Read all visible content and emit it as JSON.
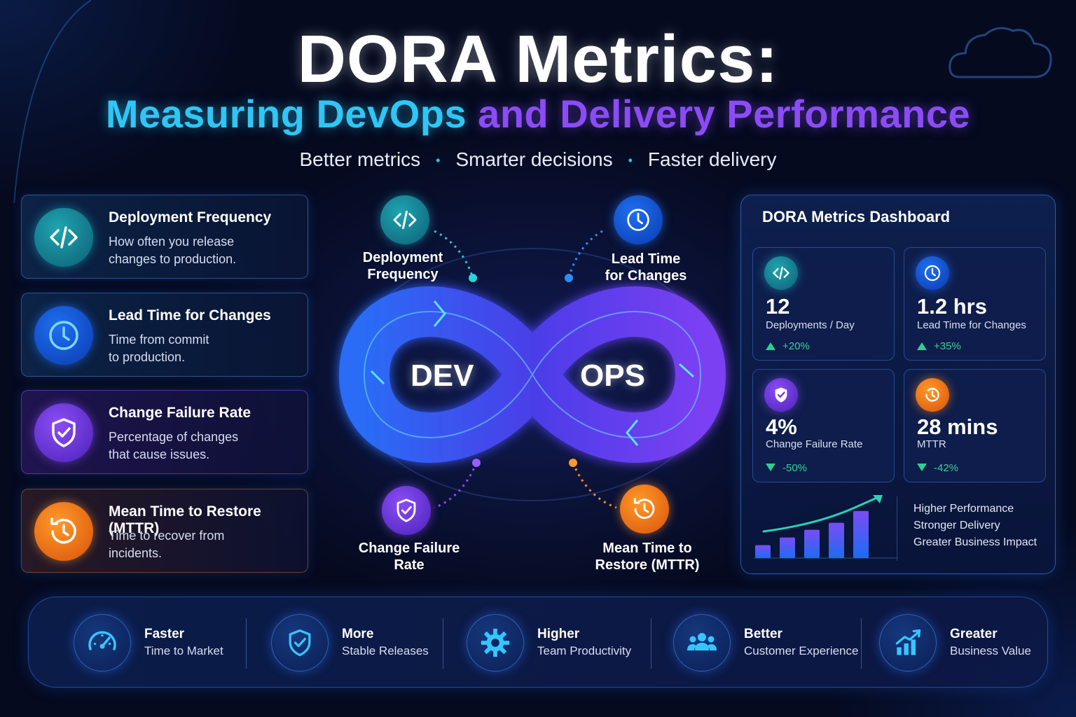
{
  "header": {
    "title": "DORA Metrics:",
    "subtitle_part1": "Measuring DevOps",
    "subtitle_part2": "and Delivery Performance",
    "taglines": [
      "Better metrics",
      "Smarter decisions",
      "Faster delivery"
    ],
    "tagline_separator": "•"
  },
  "metric_cards": [
    {
      "title": "Deployment Frequency",
      "line1": "How often you release",
      "line2": "changes to production.",
      "icon": "code-icon",
      "color": "#1aa0b0"
    },
    {
      "title": "Lead Time for Changes",
      "line1": "Time from commit",
      "line2": "to production.",
      "icon": "clock-icon",
      "color": "#1e6ff0"
    },
    {
      "title": "Change Failure Rate",
      "line1": "Percentage of changes",
      "line2": "that cause issues.",
      "icon": "shield-check-icon",
      "color": "#7b3ff0"
    },
    {
      "title": "Mean Time to Restore (MTTR)",
      "line1": "Time to recover from",
      "line2": "incidents.",
      "icon": "restore-clock-icon",
      "color": "#f07a18"
    }
  ],
  "loop": {
    "left_word": "DEV",
    "right_word": "OPS",
    "labels": {
      "top_left_1": "Deployment",
      "top_left_2": "Frequency",
      "top_right_1": "Lead Time",
      "top_right_2": "for Changes",
      "bottom_left_1": "Change Failure",
      "bottom_left_2": "Rate",
      "bottom_right_1": "Mean Time to",
      "bottom_right_2": "Restore (MTTR)"
    }
  },
  "dashboard": {
    "title": "DORA Metrics Dashboard",
    "metrics": [
      {
        "value": "12",
        "label": "Deployments / Day",
        "delta": "+20%",
        "direction": "up",
        "icon": "code-icon"
      },
      {
        "value": "1.2 hrs",
        "label": "Lead Time for Changes",
        "delta": "+35%",
        "direction": "up",
        "icon": "clock-icon"
      },
      {
        "value": "4%",
        "label": "Change Failure Rate",
        "delta": "-50%",
        "direction": "down",
        "icon": "shield-check-icon"
      },
      {
        "value": "28 mins",
        "label": "MTTR",
        "delta": "-42%",
        "direction": "down",
        "icon": "restore-clock-icon"
      }
    ],
    "trend_bars": [
      0.22,
      0.35,
      0.48,
      0.6,
      0.8
    ],
    "performance": [
      "Higher Performance",
      "Stronger Delivery",
      "Greater Business Impact"
    ],
    "accent_up": "#2ccf94"
  },
  "benefits": [
    {
      "title": "Faster",
      "subtitle": "Time to Market",
      "icon": "speedometer-icon"
    },
    {
      "title": "More",
      "subtitle": "Stable Releases",
      "icon": "shield-check-icon"
    },
    {
      "title": "Higher",
      "subtitle": "Team Productivity",
      "icon": "gear-icon"
    },
    {
      "title": "Better",
      "subtitle": "Customer Experience",
      "icon": "users-icon"
    },
    {
      "title": "Greater",
      "subtitle": "Business Value",
      "icon": "growth-chart-icon"
    }
  ]
}
